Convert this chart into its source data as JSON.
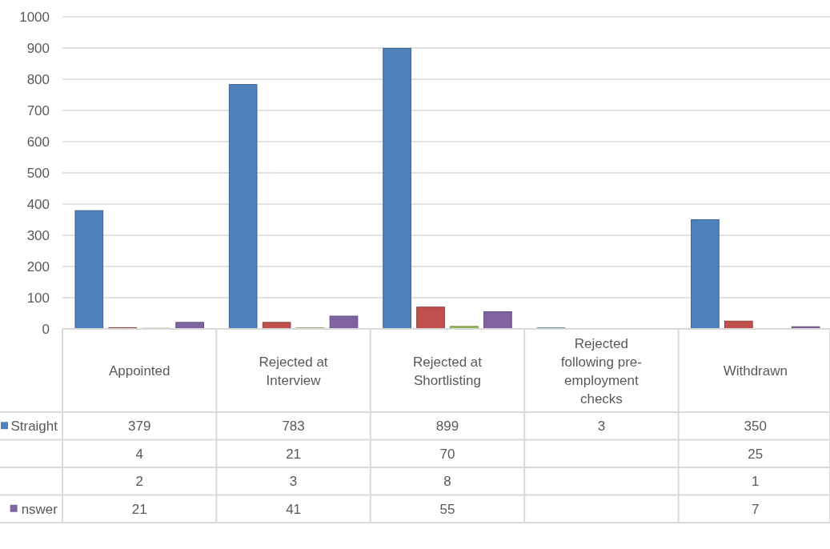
{
  "chart_data": {
    "type": "bar",
    "categories": [
      "Appointed",
      "Rejected at Interview",
      "Rejected at Shortlisting",
      "Rejected following pre-employment checks",
      "Withdrawn"
    ],
    "series": [
      {
        "name": "Straight",
        "color": "#4f81bd",
        "values": [
          379,
          783,
          899,
          3,
          350
        ]
      },
      {
        "color": "#c0504d",
        "values": [
          4,
          21,
          70,
          null,
          25
        ]
      },
      {
        "color": "#9bbb59",
        "values": [
          2,
          3,
          8,
          null,
          1
        ]
      },
      {
        "name": "nswer",
        "color": "#8064a2",
        "values": [
          21,
          41,
          55,
          null,
          7
        ]
      }
    ],
    "ylim": [
      0,
      1000
    ],
    "yticks": [
      0,
      100,
      200,
      300,
      400,
      500,
      600,
      700,
      800,
      900,
      1000
    ],
    "grid": "y",
    "data_labels": true,
    "legend": "bottom"
  }
}
